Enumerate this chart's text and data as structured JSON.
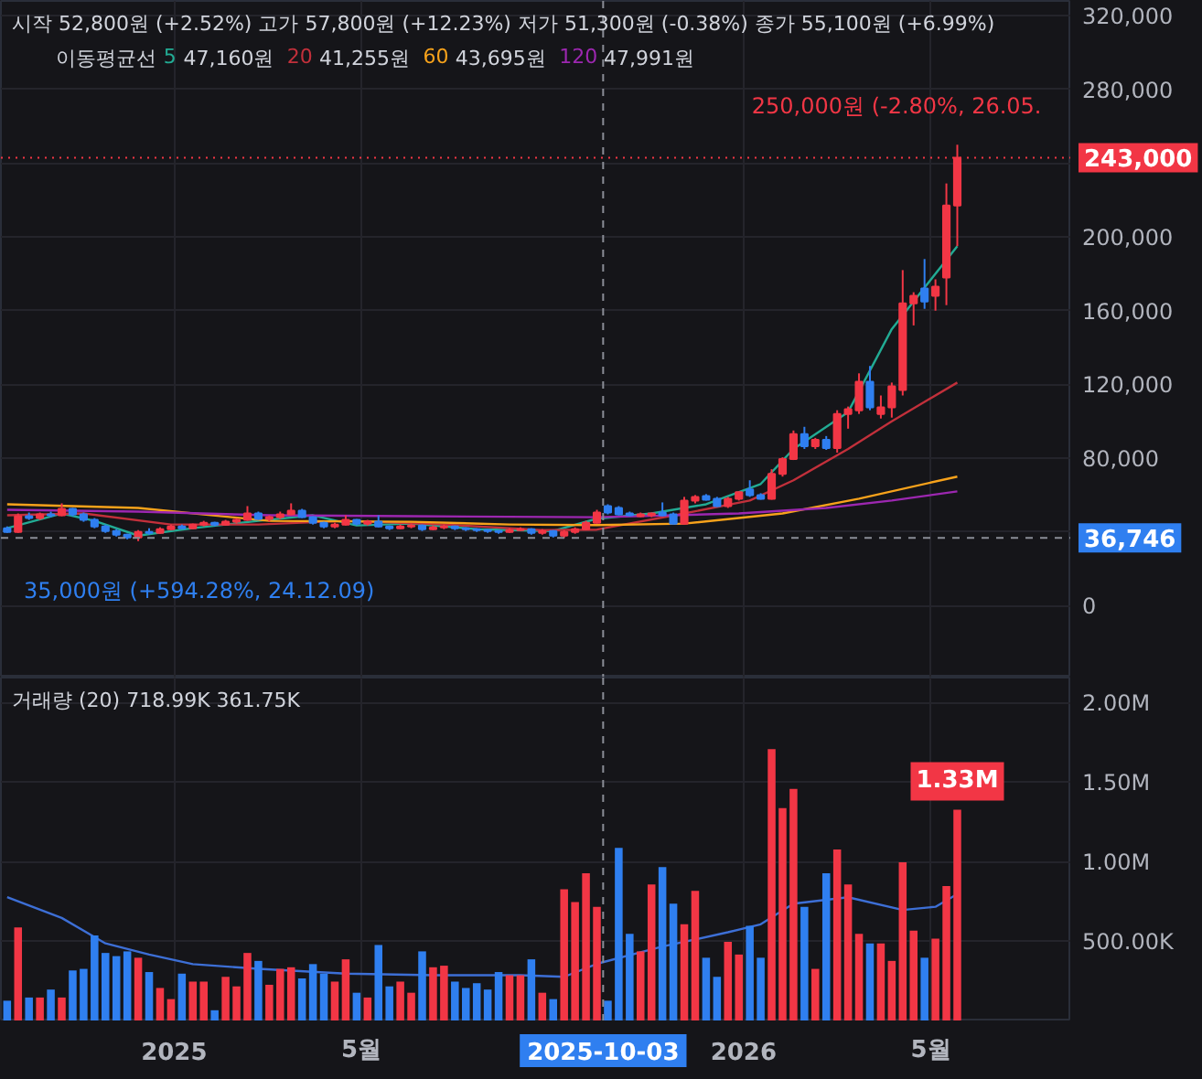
{
  "chart_data": [
    {
      "type": "candlestick",
      "tick_labels": "y",
      "grid": true,
      "annotations": [
        "시작 52,800원 (+2.52%) 고가 57,800원 (+12.23%) 저가 51,300원 (-0.38%) 종가 55,100원 (+6.99%)",
        "이동평균선",
        "47,160원",
        "41,255원",
        "43,695원",
        "47,991원",
        {
          "text": "250,000원 (-2.80%, 26.05.",
          "x": "2026-05-18",
          "y": 250000
        },
        {
          "text": "35,000원 (+594.28%, 24.12.09)",
          "x": "2024-12-09",
          "y": 35000
        }
      ],
      "x": [
        "2024-09-16",
        "2024-09-23",
        "2024-09-30",
        "2024-10-07",
        "2024-10-14",
        "2024-10-21",
        "2024-10-28",
        "2024-11-04",
        "2024-11-11",
        "2024-11-18",
        "2024-11-25",
        "2024-12-02",
        "2024-12-09",
        "2024-12-16",
        "2024-12-23",
        "2024-12-30",
        "2025-01-06",
        "2025-01-13",
        "2025-01-20",
        "2025-01-27",
        "2025-02-03",
        "2025-02-10",
        "2025-02-17",
        "2025-02-24",
        "2025-03-03",
        "2025-03-10",
        "2025-03-17",
        "2025-03-24",
        "2025-03-31",
        "2025-04-07",
        "2025-04-14",
        "2025-04-21",
        "2025-04-28",
        "2025-05-05",
        "2025-05-12",
        "2025-05-19",
        "2025-05-26",
        "2025-06-02",
        "2025-06-09",
        "2025-06-16",
        "2025-06-23",
        "2025-06-30",
        "2025-07-07",
        "2025-07-14",
        "2025-07-21",
        "2025-07-28",
        "2025-08-04",
        "2025-08-11",
        "2025-08-18",
        "2025-08-25",
        "2025-09-01",
        "2025-09-08",
        "2025-09-15",
        "2025-09-22",
        "2025-09-29",
        "2025-10-06",
        "2025-10-13",
        "2025-10-20",
        "2025-10-27",
        "2025-11-03",
        "2025-11-10",
        "2025-11-17",
        "2025-11-24",
        "2025-12-01",
        "2025-12-08",
        "2025-12-15",
        "2025-12-22",
        "2025-12-29",
        "2026-01-05",
        "2026-01-12",
        "2026-01-19",
        "2026-01-26",
        "2026-02-02",
        "2026-02-09",
        "2026-02-16",
        "2026-02-23",
        "2026-03-02",
        "2026-03-09",
        "2026-03-16",
        "2026-03-23",
        "2026-03-30",
        "2026-04-06",
        "2026-04-13",
        "2026-04-20",
        "2026-04-27",
        "2026-05-04",
        "2026-05-11",
        "2026-05-18"
      ],
      "ohlc": [
        [
          42000,
          43000,
          39500,
          40000
        ],
        [
          40000,
          50000,
          39500,
          48500
        ],
        [
          48500,
          50500,
          46500,
          47500
        ],
        [
          47500,
          50500,
          46500,
          49500
        ],
        [
          49500,
          51000,
          48000,
          49000
        ],
        [
          49000,
          55500,
          48500,
          52500
        ],
        [
          52500,
          53000,
          48500,
          49500
        ],
        [
          49500,
          50500,
          45500,
          46500
        ],
        [
          46500,
          47500,
          42000,
          43000
        ],
        [
          43000,
          44000,
          39500,
          40500
        ],
        [
          40500,
          41500,
          37500,
          38500
        ],
        [
          38500,
          39000,
          36000,
          37000
        ],
        [
          37000,
          41000,
          35000,
          40000
        ],
        [
          40000,
          42000,
          38500,
          39500
        ],
        [
          39500,
          42500,
          39000,
          41500
        ],
        [
          41500,
          44000,
          41000,
          43000
        ],
        [
          43000,
          44000,
          41500,
          42000
        ],
        [
          42000,
          44500,
          41500,
          44000
        ],
        [
          44000,
          46000,
          43000,
          45000
        ],
        [
          45000,
          45500,
          43000,
          44000
        ],
        [
          44000,
          46500,
          43500,
          45500
        ],
        [
          45500,
          47500,
          44500,
          46500
        ],
        [
          46500,
          54000,
          46000,
          50000
        ],
        [
          50000,
          51000,
          46500,
          47000
        ],
        [
          47000,
          49000,
          45500,
          48000
        ],
        [
          48000,
          51000,
          47000,
          49500
        ],
        [
          49500,
          55500,
          49000,
          51500
        ],
        [
          51500,
          52500,
          47500,
          48000
        ],
        [
          48000,
          48500,
          44000,
          45000
        ],
        [
          45000,
          45500,
          42000,
          43000
        ],
        [
          43000,
          45000,
          42000,
          44000
        ],
        [
          44000,
          49000,
          43500,
          46500
        ],
        [
          46500,
          47000,
          43500,
          44500
        ],
        [
          44500,
          46500,
          43500,
          45500
        ],
        [
          45500,
          49000,
          42500,
          43000
        ],
        [
          43000,
          43500,
          41000,
          42000
        ],
        [
          42000,
          44000,
          41500,
          43000
        ],
        [
          43000,
          44500,
          42000,
          43500
        ],
        [
          43500,
          44000,
          40500,
          41500
        ],
        [
          41500,
          43500,
          41000,
          42500
        ],
        [
          42500,
          44000,
          41500,
          43000
        ],
        [
          43000,
          43500,
          41000,
          42000
        ],
        [
          42000,
          42500,
          40500,
          41500
        ],
        [
          41500,
          42000,
          40000,
          41000
        ],
        [
          41000,
          41500,
          39500,
          40500
        ],
        [
          40500,
          41000,
          39000,
          40000
        ],
        [
          40000,
          42000,
          39500,
          41000
        ],
        [
          41000,
          42500,
          40500,
          41500
        ],
        [
          41500,
          42000,
          38500,
          39500
        ],
        [
          39500,
          41500,
          38500,
          40500
        ],
        [
          40500,
          41000,
          37000,
          38000
        ],
        [
          38000,
          41000,
          36700,
          40000
        ],
        [
          40000,
          42500,
          39000,
          41500
        ],
        [
          41500,
          46000,
          41000,
          45000
        ],
        [
          45000,
          52000,
          44500,
          50500
        ],
        [
          54000,
          55000,
          49500,
          50500
        ],
        [
          53000,
          54000,
          49000,
          49500
        ],
        [
          50000,
          51000,
          48500,
          49000
        ],
        [
          48500,
          50500,
          48000,
          49500
        ],
        [
          49000,
          50500,
          48000,
          50000
        ],
        [
          50500,
          56000,
          48500,
          49000
        ],
        [
          49500,
          50500,
          44000,
          44500
        ],
        [
          44500,
          59000,
          44000,
          57000
        ],
        [
          57000,
          60000,
          55500,
          59000
        ],
        [
          59500,
          60500,
          57000,
          57500
        ],
        [
          58000,
          59000,
          53500,
          54000
        ],
        [
          54000,
          59000,
          53000,
          58000
        ],
        [
          58000,
          62000,
          57000,
          61500
        ],
        [
          63000,
          68000,
          59000,
          60000
        ],
        [
          60000,
          61000,
          57500,
          58000
        ],
        [
          58000,
          74000,
          57500,
          71500
        ],
        [
          71500,
          80500,
          70000,
          79500
        ],
        [
          79500,
          95000,
          79000,
          93000
        ],
        [
          93000,
          97000,
          85000,
          86500
        ],
        [
          86500,
          91000,
          85000,
          90000
        ],
        [
          90000,
          92000,
          84500,
          85500
        ],
        [
          85500,
          106000,
          83000,
          104000
        ],
        [
          104000,
          108000,
          96000,
          106500
        ],
        [
          106000,
          126000,
          104000,
          121500
        ],
        [
          121500,
          130000,
          106000,
          107500
        ],
        [
          104000,
          114000,
          101500,
          107500
        ],
        [
          107500,
          121000,
          102000,
          119000
        ],
        [
          117000,
          182000,
          114000,
          164000
        ],
        [
          164000,
          170000,
          152000,
          168000
        ],
        [
          172000,
          188000,
          161000,
          165000
        ],
        [
          168000,
          177000,
          160000,
          173000
        ],
        [
          178000,
          229000,
          163000,
          217000
        ],
        [
          217000,
          250000,
          195000,
          243000
        ]
      ],
      "colors": [
        "#2f7ff0",
        "#f23645",
        "#2f7ff0",
        "#f23645",
        "#2f7ff0",
        "#f23645",
        "#2f7ff0",
        "#2f7ff0",
        "#2f7ff0",
        "#2f7ff0",
        "#2f7ff0",
        "#2f7ff0",
        "#f23645",
        "#2f7ff0",
        "#f23645",
        "#f23645",
        "#2f7ff0",
        "#f23645",
        "#f23645",
        "#2f7ff0",
        "#f23645",
        "#f23645",
        "#f23645",
        "#2f7ff0",
        "#f23645",
        "#f23645",
        "#f23645",
        "#2f7ff0",
        "#2f7ff0",
        "#2f7ff0",
        "#f23645",
        "#f23645",
        "#2f7ff0",
        "#f23645",
        "#2f7ff0",
        "#2f7ff0",
        "#f23645",
        "#f23645",
        "#2f7ff0",
        "#f23645",
        "#f23645",
        "#2f7ff0",
        "#2f7ff0",
        "#2f7ff0",
        "#2f7ff0",
        "#2f7ff0",
        "#f23645",
        "#f23645",
        "#2f7ff0",
        "#f23645",
        "#2f7ff0",
        "#f23645",
        "#f23645",
        "#f23645",
        "#f23645",
        "#2f7ff0",
        "#2f7ff0",
        "#2f7ff0",
        "#f23645",
        "#f23645",
        "#2f7ff0",
        "#2f7ff0",
        "#f23645",
        "#f23645",
        "#2f7ff0",
        "#2f7ff0",
        "#f23645",
        "#f23645",
        "#2f7ff0",
        "#2f7ff0",
        "#f23645",
        "#f23645",
        "#f23645",
        "#2f7ff0",
        "#f23645",
        "#2f7ff0",
        "#f23645",
        "#f23645",
        "#f23645",
        "#2f7ff0",
        "#f23645",
        "#f23645",
        "#f23645",
        "#f23645",
        "#2f7ff0",
        "#f23645",
        "#f23645",
        "#f23645"
      ],
      "series": [
        {
          "type": "line",
          "name": "5",
          "color": "#22ab94",
          "x": [
            "2024-09-16",
            "2024-10-21",
            "2024-11-11",
            "2024-12-09",
            "2025-01-13",
            "2025-02-24",
            "2025-03-31",
            "2025-04-28",
            "2025-06-02",
            "2025-07-14",
            "2025-09-01",
            "2025-09-29",
            "2025-11-03",
            "2025-12-08",
            "2026-01-12",
            "2026-02-02",
            "2026-03-09",
            "2026-04-06",
            "2026-05-18"
          ],
          "values": [
            42000,
            50000,
            46000,
            38000,
            42000,
            46000,
            49000,
            43500,
            44500,
            41500,
            40500,
            47160,
            50000,
            55000,
            66000,
            85000,
            105000,
            150000,
            195000
          ]
        },
        {
          "type": "line",
          "name": "20",
          "color": "#c2303b",
          "x": [
            "2024-09-16",
            "2024-11-04",
            "2024-12-30",
            "2025-02-24",
            "2025-04-21",
            "2025-06-23",
            "2025-08-25",
            "2025-09-29",
            "2025-11-24",
            "2026-01-05",
            "2026-02-02",
            "2026-03-09",
            "2026-04-06",
            "2026-05-18"
          ],
          "values": [
            49000,
            50000,
            44000,
            44000,
            46000,
            44000,
            41000,
            41255,
            50000,
            57000,
            68000,
            85000,
            100000,
            121000
          ]
        },
        {
          "type": "line",
          "name": "60",
          "color": "#f7a21b",
          "x": [
            "2024-09-16",
            "2024-12-09",
            "2025-03-03",
            "2025-06-02",
            "2025-08-04",
            "2025-09-29",
            "2025-11-24",
            "2026-01-26",
            "2026-03-16",
            "2026-05-18"
          ],
          "values": [
            55000,
            53000,
            46000,
            45500,
            44000,
            43695,
            44500,
            50000,
            58000,
            70000
          ]
        },
        {
          "type": "line",
          "name": "120",
          "color": "#9c27b0",
          "x": [
            "2024-09-16",
            "2024-12-09",
            "2025-03-03",
            "2025-06-02",
            "2025-09-29",
            "2025-12-29",
            "2026-02-23",
            "2026-04-06",
            "2026-05-18"
          ],
          "values": [
            52000,
            51000,
            49000,
            48500,
            47991,
            50000,
            53000,
            57000,
            62000
          ]
        }
      ],
      "xlim": [
        "2024-09-12",
        "2026-07-30"
      ],
      "xticks": [
        {
          "value": "2025-01-01",
          "label": null
        },
        {
          "value": "2025-05-01",
          "label": null
        },
        {
          "value": "2026-01-01",
          "label": null
        },
        {
          "value": "2026-05-01",
          "label": null
        }
      ],
      "ylim": [
        -39000,
        328000
      ],
      "yticks": [
        0,
        {
          "value": 40000,
          "label": null
        },
        {
          "value": 80000,
          "label": "80,000"
        },
        {
          "value": 120000,
          "label": "120,000"
        },
        {
          "value": 160000,
          "label": "160,000"
        },
        {
          "value": 200000,
          "label": "200,000"
        },
        {
          "value": 240000,
          "label": null
        },
        {
          "value": 280000,
          "label": "280,000"
        },
        {
          "value": 320000,
          "label": "320,000"
        }
      ],
      "ref_lines": [
        {
          "axis": "y",
          "value": 243000,
          "label": "243,000",
          "color": "#f23645",
          "line_style": "dotted"
        },
        {
          "axis": "y",
          "value": 36746,
          "label": "36,746",
          "color": "#8a8d96",
          "line_style": "dashed"
        },
        {
          "axis": "x",
          "value": "2025-10-03",
          "line_style": "dashed"
        }
      ]
    },
    {
      "type": "bar",
      "grid": true,
      "annotations": [
        "거래량 (20) 718.99K 361.75K"
      ],
      "x": [
        "2024-09-16",
        "2024-09-23",
        "2024-09-30",
        "2024-10-07",
        "2024-10-14",
        "2024-10-21",
        "2024-10-28",
        "2024-11-04",
        "2024-11-11",
        "2024-11-18",
        "2024-11-25",
        "2024-12-02",
        "2024-12-09",
        "2024-12-16",
        "2024-12-23",
        "2024-12-30",
        "2025-01-06",
        "2025-01-13",
        "2025-01-20",
        "2025-01-27",
        "2025-02-03",
        "2025-02-10",
        "2025-02-17",
        "2025-02-24",
        "2025-03-03",
        "2025-03-10",
        "2025-03-17",
        "2025-03-24",
        "2025-03-31",
        "2025-04-07",
        "2025-04-14",
        "2025-04-21",
        "2025-04-28",
        "2025-05-05",
        "2025-05-12",
        "2025-05-19",
        "2025-05-26",
        "2025-06-02",
        "2025-06-09",
        "2025-06-16",
        "2025-06-23",
        "2025-06-30",
        "2025-07-07",
        "2025-07-14",
        "2025-07-21",
        "2025-07-28",
        "2025-08-04",
        "2025-08-11",
        "2025-08-18",
        "2025-08-25",
        "2025-09-01",
        "2025-09-08",
        "2025-09-15",
        "2025-09-22",
        "2025-09-29",
        "2025-10-06",
        "2025-10-13",
        "2025-10-20",
        "2025-10-27",
        "2025-11-03",
        "2025-11-10",
        "2025-11-17",
        "2025-11-24",
        "2025-12-01",
        "2025-12-08",
        "2025-12-15",
        "2025-12-22",
        "2025-12-29",
        "2026-01-05",
        "2026-01-12",
        "2026-01-19",
        "2026-01-26",
        "2026-02-02",
        "2026-02-09",
        "2026-02-16",
        "2026-02-23",
        "2026-03-02",
        "2026-03-09",
        "2026-03-16",
        "2026-03-23",
        "2026-03-30",
        "2026-04-06",
        "2026-04-13",
        "2026-04-20",
        "2026-04-27",
        "2026-05-04",
        "2026-05-11",
        "2026-05-18"
      ],
      "series": [
        {
          "type": "bar",
          "values": [
            130000,
            590000,
            150000,
            150000,
            200000,
            150000,
            320000,
            330000,
            540000,
            430000,
            410000,
            440000,
            400000,
            310000,
            210000,
            140000,
            300000,
            250000,
            250000,
            70000,
            280000,
            220000,
            430000,
            380000,
            230000,
            330000,
            340000,
            270000,
            360000,
            300000,
            250000,
            390000,
            180000,
            150000,
            480000,
            220000,
            250000,
            180000,
            440000,
            340000,
            350000,
            250000,
            210000,
            240000,
            200000,
            310000,
            290000,
            290000,
            390000,
            180000,
            140000,
            830000,
            750000,
            930000,
            720000,
            130000,
            1090000,
            550000,
            440000,
            860000,
            970000,
            740000,
            610000,
            820000,
            400000,
            280000,
            500000,
            420000,
            600000,
            400000,
            1710000,
            1340000,
            1460000,
            720000,
            330000,
            930000,
            1080000,
            860000,
            550000,
            490000,
            490000,
            380000,
            1000000,
            570000,
            400000,
            520000,
            850000,
            1330000
          ],
          "value_labels": [
            null,
            null,
            null,
            null,
            null,
            null,
            null,
            null,
            null,
            null,
            null,
            null,
            null,
            null,
            null,
            null,
            null,
            null,
            null,
            null,
            null,
            null,
            null,
            null,
            null,
            null,
            null,
            null,
            null,
            null,
            null,
            null,
            null,
            null,
            null,
            null,
            null,
            null,
            null,
            null,
            null,
            null,
            null,
            null,
            null,
            null,
            null,
            null,
            null,
            null,
            null,
            null,
            null,
            null,
            null,
            null,
            null,
            null,
            null,
            null,
            null,
            null,
            null,
            null,
            null,
            null,
            null,
            null,
            null,
            null,
            null,
            null,
            null,
            null,
            null,
            null,
            null,
            null,
            null,
            null,
            null,
            null,
            null,
            null,
            null,
            null,
            null,
            "1.33M"
          ],
          "colors": [
            "#2f7ff0",
            "#f23645",
            "#2f7ff0",
            "#f23645",
            "#2f7ff0",
            "#f23645",
            "#2f7ff0",
            "#2f7ff0",
            "#2f7ff0",
            "#2f7ff0",
            "#2f7ff0",
            "#2f7ff0",
            "#f23645",
            "#2f7ff0",
            "#f23645",
            "#f23645",
            "#2f7ff0",
            "#f23645",
            "#f23645",
            "#2f7ff0",
            "#f23645",
            "#f23645",
            "#f23645",
            "#2f7ff0",
            "#f23645",
            "#f23645",
            "#f23645",
            "#2f7ff0",
            "#2f7ff0",
            "#2f7ff0",
            "#f23645",
            "#f23645",
            "#2f7ff0",
            "#f23645",
            "#2f7ff0",
            "#2f7ff0",
            "#f23645",
            "#f23645",
            "#2f7ff0",
            "#f23645",
            "#f23645",
            "#2f7ff0",
            "#2f7ff0",
            "#2f7ff0",
            "#2f7ff0",
            "#2f7ff0",
            "#f23645",
            "#f23645",
            "#2f7ff0",
            "#f23645",
            "#2f7ff0",
            "#f23645",
            "#f23645",
            "#f23645",
            "#f23645",
            "#2f7ff0",
            "#2f7ff0",
            "#2f7ff0",
            "#f23645",
            "#f23645",
            "#2f7ff0",
            "#2f7ff0",
            "#f23645",
            "#f23645",
            "#2f7ff0",
            "#2f7ff0",
            "#f23645",
            "#f23645",
            "#2f7ff0",
            "#2f7ff0",
            "#f23645",
            "#f23645",
            "#f23645",
            "#2f7ff0",
            "#f23645",
            "#2f7ff0",
            "#f23645",
            "#f23645",
            "#f23645",
            "#2f7ff0",
            "#f23645",
            "#f23645",
            "#f23645",
            "#f23645",
            "#2f7ff0",
            "#f23645",
            "#f23645",
            "#f23645"
          ]
        },
        {
          "type": "line",
          "color": "#3d6fd6",
          "x": [
            "2024-09-16",
            "2024-10-21",
            "2024-11-18",
            "2024-12-16",
            "2025-01-13",
            "2025-02-24",
            "2025-04-21",
            "2025-06-16",
            "2025-08-11",
            "2025-09-08",
            "2025-09-29",
            "2025-11-10",
            "2025-12-22",
            "2026-01-12",
            "2026-02-02",
            "2026-03-09",
            "2026-04-13",
            "2026-05-04",
            "2026-05-18"
          ],
          "values": [
            780000,
            650000,
            490000,
            420000,
            360000,
            330000,
            300000,
            290000,
            290000,
            280000,
            361750,
            470000,
            560000,
            610000,
            740000,
            780000,
            700000,
            720000,
            800000
          ]
        }
      ],
      "xlim": [
        "2024-09-12",
        "2026-07-30"
      ],
      "xticks": [
        {
          "value": "2025-01-01",
          "label": "2025"
        },
        {
          "value": "2025-05-01",
          "label": "5월"
        },
        {
          "value": "2026-01-01",
          "label": "2026"
        },
        {
          "value": "2026-05-01",
          "label": "5월"
        }
      ],
      "ylim": [
        0,
        2160000
      ],
      "yticks": [
        {
          "value": 500000,
          "label": "500.00K"
        },
        {
          "value": 1000000,
          "label": "1.00M"
        },
        {
          "value": 1500000,
          "label": "1.50M"
        },
        {
          "value": 2000000,
          "label": "2.00M"
        }
      ],
      "ref_lines": [
        {
          "axis": "x",
          "value": "2025-10-03",
          "label": "2025-10-03",
          "color": "#8a8d96",
          "line_style": "dashed"
        }
      ]
    }
  ]
}
